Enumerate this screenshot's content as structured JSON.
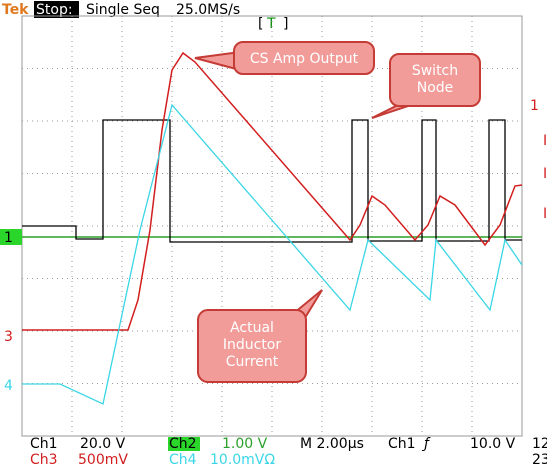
{
  "header": {
    "brand": "Tek",
    "state": "Stop:",
    "mode": "Single Seq",
    "rate": "25.0MS/s",
    "trigger_pos": "T"
  },
  "markers": {
    "ch1": "1",
    "ch3": "3",
    "ch4": "4",
    "right": "1"
  },
  "callouts": [
    "CS Amp Output",
    "Switch\nNode",
    "Actual\nInductor\nCurrent"
  ],
  "footer": {
    "ch1": "Ch1",
    "ch1_scale": "20.0 V",
    "ch2": "Ch2",
    "ch2_scale": "1.00 V",
    "timebase": "M 2.00µs",
    "trigger_src": "Ch1",
    "trigger_slope": "ƒ",
    "trigger_level": "10.0 V",
    "ch3": "Ch3",
    "ch3_scale": "500mV",
    "ch4": "Ch4",
    "ch4_scale": "10.0mVΩ",
    "edge_top": "12",
    "edge_bottom": "23"
  }
}
